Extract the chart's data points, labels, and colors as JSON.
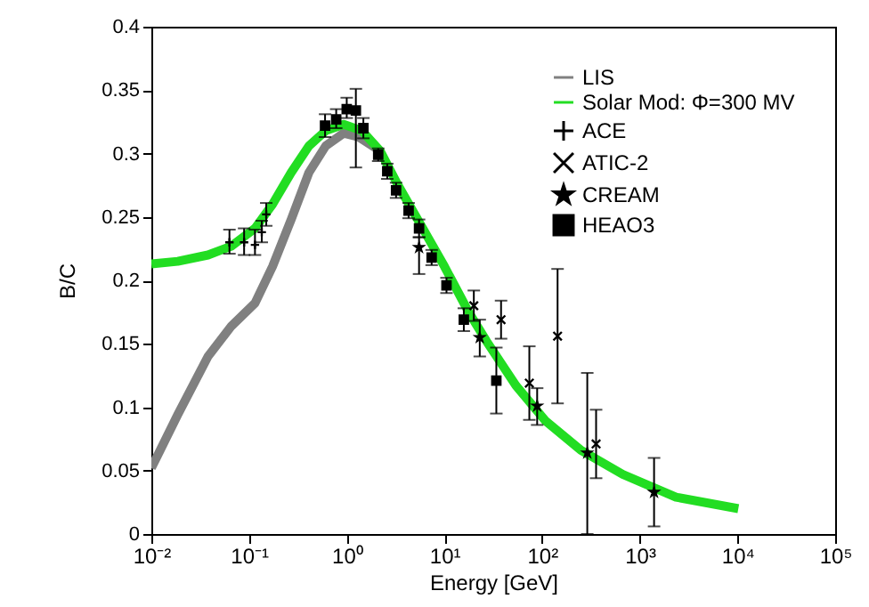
{
  "chart_data": {
    "type": "line",
    "xlabel": "Energy [GeV]",
    "ylabel": "B/C",
    "log": "x",
    "xlim": [
      0.01,
      100000
    ],
    "ylim": [
      0,
      0.4
    ],
    "xticks": [
      {
        "value": 0.01,
        "label": "10⁻²"
      },
      {
        "value": 0.1,
        "label": "10⁻¹"
      },
      {
        "value": 1,
        "label": "10⁰"
      },
      {
        "value": 10,
        "label": "10¹"
      },
      {
        "value": 100,
        "label": "10²"
      },
      {
        "value": 1000,
        "label": "10³"
      },
      {
        "value": 10000,
        "label": "10⁴"
      },
      {
        "value": 100000,
        "label": "10⁵"
      }
    ],
    "yticks": [
      0,
      0.05,
      0.1,
      0.15,
      0.2,
      0.25,
      0.3,
      0.35,
      0.4
    ],
    "legend": "top right",
    "series": [
      {
        "name": "LIS",
        "marker": "none",
        "color": "#808080",
        "x": [
          0.01,
          0.0186,
          0.038,
          0.066,
          0.115,
          0.174,
          0.27,
          0.41,
          0.61,
          0.93,
          1.33,
          2.2
        ],
        "values": [
          0.052,
          0.094,
          0.14,
          0.164,
          0.182,
          0.211,
          0.248,
          0.285,
          0.306,
          0.316,
          0.313,
          0.302
        ]
      },
      {
        "name": "Solar Mod: Φ=300 MV",
        "marker": "none",
        "color": "#22dd22",
        "x": [
          0.01,
          0.0186,
          0.038,
          0.066,
          0.115,
          0.174,
          0.27,
          0.41,
          0.61,
          0.93,
          1.43,
          2.2,
          3.3,
          5.8,
          10,
          17.7,
          27,
          54,
          109,
          250,
          670,
          2350,
          10200
        ],
        "values": [
          0.213,
          0.215,
          0.22,
          0.227,
          0.241,
          0.26,
          0.285,
          0.306,
          0.318,
          0.323,
          0.318,
          0.302,
          0.276,
          0.243,
          0.211,
          0.175,
          0.152,
          0.117,
          0.089,
          0.066,
          0.047,
          0.029,
          0.02
        ]
      },
      {
        "name": "ACE",
        "type": "scatter",
        "marker": "cross",
        "color": "#000000",
        "x": [
          0.063,
          0.089,
          0.115,
          0.135,
          0.15
        ],
        "values": [
          0.23,
          0.23,
          0.228,
          0.238,
          0.252
        ],
        "errors": [
          [
            0.221,
            0.24
          ],
          [
            0.22,
            0.241
          ],
          [
            0.22,
            0.24
          ],
          [
            0.23,
            0.247
          ],
          [
            0.243,
            0.261
          ]
        ]
      },
      {
        "name": "ATIC-2",
        "type": "scatter",
        "marker": "x",
        "color": "#000000",
        "x": [
          20,
          38,
          74,
          144,
          357
        ],
        "values": [
          0.18,
          0.169,
          0.119,
          0.156,
          0.071
        ],
        "errors": [
          [
            0.168,
            0.192
          ],
          [
            0.154,
            0.184
          ],
          [
            0.09,
            0.148
          ],
          [
            0.103,
            0.209
          ],
          [
            0.044,
            0.098
          ]
        ]
      },
      {
        "name": "CREAM",
        "type": "scatter",
        "marker": "star",
        "color": "#000000",
        "x": [
          5.5,
          23,
          89,
          290,
          1400
        ],
        "values": [
          0.226,
          0.155,
          0.101,
          0.064,
          0.033
        ],
        "errors": [
          [
            0.205,
            0.234
          ],
          [
            0.14,
            0.169
          ],
          [
            0.086,
            0.115
          ],
          [
            0,
            0.127
          ],
          [
            0.006,
            0.06
          ]
        ]
      },
      {
        "name": "HEAO3",
        "type": "scatter",
        "marker": "square",
        "color": "#000000",
        "x": [
          0.6,
          0.78,
          1,
          1.24,
          1.48,
          2.1,
          2.6,
          3.2,
          4.3,
          5.5,
          7.4,
          10.5,
          15.8,
          34
        ],
        "values": [
          0.322,
          0.327,
          0.335,
          0.334,
          0.32,
          0.299,
          0.286,
          0.271,
          0.255,
          0.241,
          0.218,
          0.196,
          0.169,
          0.121
        ],
        "errors": [
          [
            0.313,
            0.331
          ],
          [
            0.32,
            0.335
          ],
          [
            0.328,
            0.344
          ],
          [
            0.289,
            0.351
          ],
          [
            0.312,
            0.328
          ],
          [
            0.294,
            0.304
          ],
          [
            0.28,
            0.292
          ],
          [
            0.265,
            0.277
          ],
          [
            0.249,
            0.261
          ],
          [
            0.234,
            0.248
          ],
          [
            0.212,
            0.224
          ],
          [
            0.19,
            0.202
          ],
          [
            0.16,
            0.178
          ],
          [
            0.095,
            0.147
          ]
        ]
      }
    ]
  }
}
